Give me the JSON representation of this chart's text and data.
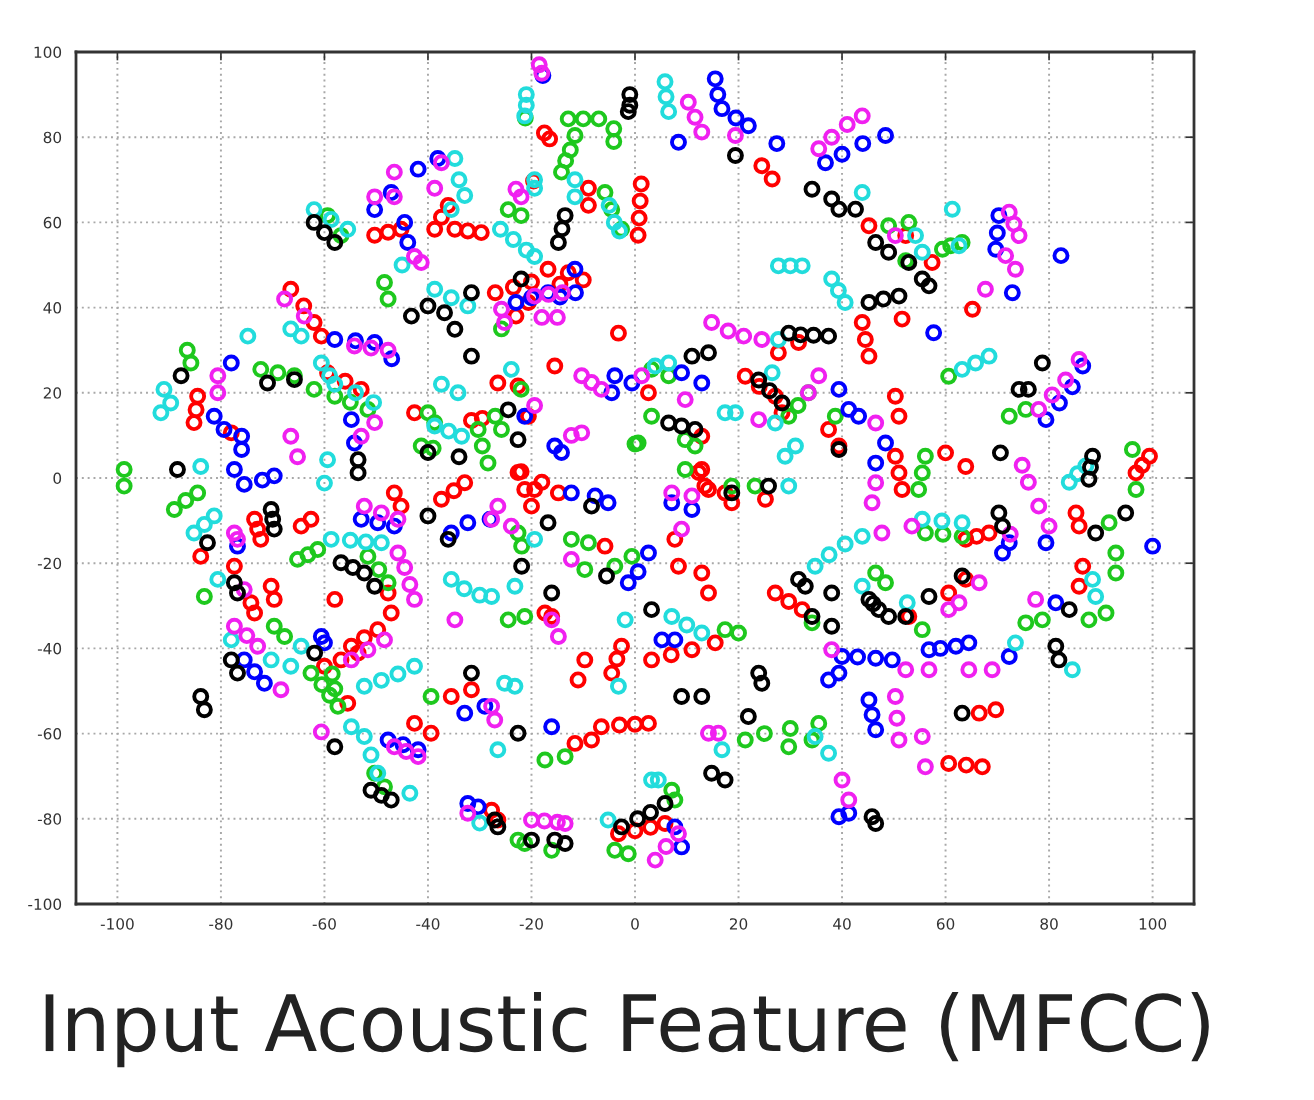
{
  "chart_data": {
    "type": "scatter",
    "title": "Input Acoustic Feature (MFCC)",
    "marker": "circle",
    "grid": true,
    "xlim": [
      -108,
      108
    ],
    "ylim": [
      -100,
      100
    ],
    "xticks": [
      -100,
      -80,
      -60,
      -40,
      -20,
      0,
      20,
      40,
      60,
      80,
      100
    ],
    "yticks": [
      -100,
      -80,
      -60,
      -40,
      -20,
      0,
      20,
      40,
      60,
      80,
      100
    ],
    "series": [
      {
        "color": "#ff0000",
        "x": [
          1.2,
          1,
          0.8,
          0.6,
          -17.5,
          -16.5,
          -9,
          -9,
          -19.6,
          -16.8,
          -12.9,
          -27,
          -23.5,
          -20,
          -23,
          -20.6,
          -14.5,
          -10,
          -50.3,
          -47.7,
          -45.2,
          -38.7,
          -37.4,
          -36.1,
          -34.8,
          -32.3,
          -29.7,
          -66.5,
          -64,
          -62,
          -60.6,
          -59.4,
          -56,
          -52.9,
          -84.5,
          -84.8,
          -85.2,
          -78,
          -42.6,
          -31.6,
          -29.5,
          -26.5,
          -22.6,
          -20.6,
          -15.5,
          -22,
          -18,
          -3.2,
          24.5,
          26.5,
          45.2,
          52.3,
          57.4,
          65.2,
          51.6,
          43.9,
          44.5,
          45.2,
          27.7,
          31.6,
          2.6,
          21.3,
          24,
          27.1,
          28.4,
          12.9,
          37.4,
          39.4,
          50.3,
          51,
          50.3,
          51,
          51.6,
          60,
          63.9,
          12.9,
          14.2,
          96.8,
          98,
          99.4,
          -83.9,
          -73.5,
          -72.9,
          -72.3,
          -77.4,
          -74.2,
          -73.5,
          -70.3,
          -69.7,
          -64.5,
          -62.6,
          -46.5,
          -45.2,
          -47.7,
          -47.1,
          -58,
          -60,
          -56.8,
          -53.5,
          -54.8,
          -52.3,
          -49.7,
          -55.5,
          -37.4,
          -35,
          -32.9,
          -22.6,
          -21.3,
          -20,
          -19.4,
          -14.8,
          -5.8,
          -17.4,
          -16.1,
          -35.5,
          -31.6,
          -42.6,
          -39.4,
          -11.6,
          -8.4,
          -6.5,
          -3,
          0,
          2.6,
          -11,
          -9.7,
          -4.5,
          -3.5,
          -2.6,
          -27.7,
          -26.5,
          -3.2,
          0,
          3,
          5.8,
          12.3,
          13.5,
          7.7,
          17.4,
          18.7,
          25.2,
          8.4,
          12.9,
          14.2,
          3.2,
          7,
          11,
          15.5,
          60.6,
          64,
          67.1,
          66.5,
          69.7,
          27.1,
          29.7,
          32.3,
          52.9,
          60.6,
          63.9,
          63.9,
          66,
          68.4,
          86.5,
          85.8,
          85.2,
          85.8
        ],
        "values": [
          69,
          65,
          61,
          57,
          81,
          79.6,
          68,
          64,
          69.7,
          49,
          48.2,
          43.5,
          44.8,
          46,
          38,
          41.2,
          45.5,
          46.5,
          57,
          57.7,
          58.4,
          58.4,
          61.2,
          64,
          58.4,
          58,
          57.6,
          44.3,
          40.4,
          36.5,
          33.3,
          24.7,
          22.7,
          20.8,
          19.2,
          16,
          13,
          10.6,
          15.3,
          13.5,
          14,
          22.3,
          21.6,
          14.5,
          26.3,
          1.5,
          -1,
          34,
          73.3,
          70.2,
          59.2,
          56.9,
          50.6,
          39.6,
          37.3,
          36.5,
          32.5,
          28.6,
          29.4,
          31.8,
          20,
          23.9,
          21.5,
          19.2,
          15.3,
          9.8,
          11.4,
          7.5,
          19.2,
          14.5,
          5.1,
          1.2,
          -2.7,
          5.9,
          2.7,
          2,
          -2.7,
          1.2,
          3,
          5.1,
          -18.4,
          -9.7,
          -12,
          -14.4,
          -20.7,
          -29.3,
          -31.7,
          -25.4,
          -28.5,
          -11.3,
          -9.7,
          -3.5,
          -6.6,
          -27,
          -31.7,
          -28.5,
          -44.2,
          -42.7,
          -41.1,
          -39.5,
          -37.5,
          -35.6,
          -52.9,
          -5,
          -3,
          -1.1,
          1.3,
          -2.7,
          -6.6,
          -2.7,
          -3.5,
          -16,
          -31.7,
          -32.5,
          -51.3,
          -49.7,
          -57.6,
          -59.9,
          -62.3,
          -61.5,
          -58.4,
          -58,
          -57.8,
          -57.6,
          -47.4,
          -42.7,
          -45.8,
          -42.5,
          -39.5,
          -78,
          -80.3,
          -83.5,
          -82.8,
          -82,
          -81.1,
          1.3,
          -1.9,
          -14.4,
          -3.5,
          -5.8,
          -5,
          -20.7,
          -22.3,
          -27,
          -42.7,
          -41.5,
          -40.3,
          -38.7,
          -67,
          -67.4,
          -67.8,
          -55.2,
          -54.4,
          -27,
          -29,
          -30.9,
          -32.5,
          -27,
          -23.8,
          -14.4,
          -13.7,
          -12.9,
          -20.7,
          -25.4,
          -8.2,
          -11.3
        ]
      },
      {
        "color": "#1ec81e",
        "x": [
          -21.2,
          -12.9,
          -10,
          -7,
          -11.6,
          -12.5,
          -13.4,
          -14.2,
          -4.1,
          -4.1,
          -5.8,
          -4.5,
          -2.6,
          -24.5,
          -22,
          -25.8,
          -48.4,
          -47.7,
          -59.4,
          -56.8,
          -62,
          -58,
          -55,
          -51.6,
          -72.3,
          -69,
          -65.8,
          -86.5,
          -85.8,
          -40,
          -38.7,
          -41.3,
          -39,
          -30.3,
          -29.5,
          -28.4,
          -27,
          -25.8,
          -22,
          0,
          -98.7,
          -98.7,
          49,
          52.9,
          52.3,
          59.4,
          61,
          63.2,
          60.6,
          72.3,
          75.5,
          96.1,
          3.2,
          6.5,
          33.5,
          31.5,
          29.7,
          3.2,
          9.7,
          11.6,
          0.6,
          38.7,
          56.1,
          55.5,
          54.8,
          -89,
          -86.8,
          -84.5,
          -83.2,
          -65.2,
          -63.2,
          -61.3,
          -51.6,
          -49.5,
          -47.7,
          -69.7,
          -67.7,
          -62.6,
          -60.5,
          -59,
          -57.4,
          -58.5,
          -58,
          -50.3,
          -48.4,
          -22.6,
          -21.9,
          -12.3,
          -9,
          -9.7,
          -24.5,
          -21.3,
          -39.4,
          -17.4,
          -13.5,
          -22.6,
          -21.3,
          -16.1,
          -3.9,
          -1.3,
          9.7,
          18.7,
          23.2,
          -3.9,
          -0.6,
          17.4,
          20,
          21.3,
          25,
          30,
          35.5,
          29.7,
          34.2,
          7.1,
          7.7,
          75.5,
          78.7,
          87.7,
          91,
          92.9,
          92.9,
          91.6,
          96.8,
          56.1,
          59.5,
          63.2,
          46.5,
          48.4,
          34.2,
          55.5
        ],
        "values": [
          84.5,
          84.3,
          84.3,
          84.3,
          80.4,
          77,
          74.5,
          71.8,
          82,
          79,
          67,
          63,
          58.4,
          63,
          61.6,
          35,
          45.9,
          42,
          61.6,
          56.9,
          20.8,
          19.2,
          17.8,
          16.1,
          25.5,
          24.7,
          24,
          30,
          27,
          15.3,
          13,
          7.5,
          7,
          11.4,
          7.5,
          3.5,
          14.5,
          11.4,
          20.8,
          8,
          2,
          -1.9,
          59.2,
          60,
          51,
          53.7,
          54.5,
          55.3,
          23.9,
          14.5,
          16.1,
          6.7,
          25.5,
          24,
          20,
          17,
          14.5,
          14.5,
          9,
          7.5,
          8.2,
          14.5,
          5.1,
          1.2,
          -2.7,
          -7.4,
          -5.3,
          -3.5,
          -27.8,
          -19.1,
          -18,
          -16.8,
          -18.4,
          -21.5,
          -24.6,
          -34.8,
          -37.2,
          -45.8,
          -48.5,
          -51,
          -53.6,
          -46,
          -49.5,
          -69.3,
          -72.5,
          -12.9,
          -16,
          -14.4,
          -15.2,
          -21.5,
          -33.3,
          -32.5,
          -51.3,
          -66.2,
          -65.4,
          -85,
          -85.8,
          -87.4,
          -87.4,
          -88.2,
          2,
          -1.9,
          -1.9,
          -20.7,
          -18.4,
          -35.6,
          -36.4,
          -61.5,
          -60,
          -58.8,
          -57.6,
          -63.1,
          -61.5,
          -73.3,
          -75.6,
          -34,
          -33.3,
          -33.3,
          -31.7,
          -17.6,
          -22.3,
          -10.5,
          -2.7,
          -12.9,
          -13.2,
          -13.7,
          -22.3,
          -24.6,
          -34,
          -35.6
        ]
      },
      {
        "color": "#0000ff",
        "x": [
          -17.8,
          -23,
          -20,
          -16.8,
          -14.5,
          -11.5,
          -11.6,
          -44.5,
          -43.9,
          -50.3,
          -47.1,
          -41.9,
          -38.1,
          -58,
          -54,
          -50.3,
          -47,
          -78,
          -81.3,
          -79.4,
          -76,
          -76,
          -54.8,
          -54.2,
          -75.5,
          -72,
          -69.7,
          -77.4,
          -21.3,
          -3.9,
          -0.6,
          -4.5,
          -15.5,
          -14.2,
          8.4,
          15.5,
          16,
          16.8,
          19.5,
          21.9,
          27.4,
          36.8,
          40,
          44,
          48.4,
          70.3,
          70,
          69.7,
          72.9,
          82.3,
          57.7,
          79.4,
          82,
          84.5,
          86.5,
          9,
          12.9,
          39.4,
          41.3,
          43.2,
          46.5,
          48.4,
          -76.8,
          -52.9,
          -49.7,
          -46.5,
          -75.5,
          -73.5,
          -71.6,
          -60.6,
          -60,
          -47.7,
          -44.8,
          -41.9,
          -35.5,
          -32.3,
          -28,
          -12.3,
          -7.7,
          -5.2,
          -1.3,
          0.6,
          2.6,
          -32.9,
          -29,
          -16.1,
          -32.3,
          -30.3,
          7.1,
          11,
          5.2,
          7.7,
          7.7,
          9,
          39.4,
          41.3,
          45.2,
          45.8,
          46.5,
          37.4,
          39.4,
          40,
          43,
          46.5,
          49.7,
          56.8,
          59,
          62,
          64.5,
          72.3,
          81.3,
          100,
          79.4,
          71,
          72.3
        ],
        "values": [
          94.5,
          41.2,
          42.3,
          43.5,
          42.5,
          43.5,
          49,
          60,
          55.3,
          63,
          67,
          72.5,
          75,
          32.5,
          32.2,
          31.8,
          28,
          27,
          14.5,
          11.4,
          9.8,
          6.7,
          13.7,
          8.2,
          -1.5,
          -0.5,
          0.5,
          2,
          14.5,
          24,
          22.3,
          20,
          7.5,
          6,
          78.8,
          93.7,
          90,
          86.7,
          84.5,
          82.7,
          78.5,
          74,
          76,
          78.5,
          80.4,
          61.6,
          57.5,
          53.7,
          43.5,
          52.2,
          34.1,
          13.7,
          17.6,
          21.4,
          26.3,
          24.7,
          22.3,
          20.8,
          16.1,
          14.5,
          3.5,
          8.2,
          -16,
          -9.7,
          -10.5,
          -11.3,
          -42.7,
          -45.5,
          -48.2,
          -37.2,
          -38.7,
          -61.5,
          -62.6,
          -63.8,
          -12.9,
          -10.5,
          -9.7,
          -3.5,
          -4.2,
          -5.8,
          -24.6,
          -22,
          -17.6,
          -55.2,
          -53.6,
          -58.4,
          -76.4,
          -77.2,
          -5.8,
          -7.4,
          -38,
          -38,
          -81.9,
          -86.6,
          -79.5,
          -78.7,
          -52.1,
          -55.6,
          -59.1,
          -47.4,
          -45.8,
          -41.9,
          -42,
          -42.3,
          -42.7,
          -40.3,
          -40,
          -39.5,
          -38.7,
          -41.9,
          -29.3,
          -16,
          -15.2,
          -17.6,
          -15.2
        ]
      },
      {
        "color": "#22dcdc",
        "x": [
          -21,
          -21,
          -21.3,
          -19.4,
          -19.4,
          -11.6,
          -11.6,
          -5,
          -4,
          -3,
          -26,
          -23.5,
          -21,
          -19.4,
          -38.7,
          -35.5,
          -32.3,
          -45,
          -34.8,
          -34,
          -32.9,
          -35.5,
          -62,
          -58.7,
          -55.5,
          -66.5,
          -64.5,
          -74.8,
          -60.6,
          -59,
          -58,
          -54,
          -50.5,
          -91,
          -89.7,
          -91.6,
          -59.4,
          -60,
          -83.9,
          -38.7,
          -36,
          -33.5,
          -37.4,
          -34.2,
          -23.9,
          5.8,
          6,
          6.5,
          43.9,
          54.2,
          55.5,
          62.6,
          61.3,
          27.7,
          30,
          32.3,
          38,
          39.3,
          40.6,
          63.2,
          65.8,
          68.4,
          83.9,
          85.5,
          87.1,
          27.7,
          3.9,
          6.5,
          26.5,
          27.1,
          17.4,
          19.4,
          31,
          29,
          -85.2,
          -83.2,
          -81.3,
          -80.6,
          -58.7,
          -55,
          -52,
          -49,
          -78,
          -70.3,
          -66.5,
          -64.5,
          -52.3,
          -49,
          -45.8,
          -42.6,
          -54.8,
          -52.3,
          -51,
          -49.7,
          -43.5,
          -35.5,
          -33,
          -30,
          -27.7,
          -19.4,
          -23.2,
          -25.2,
          -23.2,
          -26.5,
          -3.2,
          -1.9,
          -30,
          -5.2,
          29.7,
          7.1,
          10,
          12.9,
          34.8,
          37.4,
          16.8,
          3.2,
          4.5,
          73.5,
          84.5,
          88.4,
          89,
          55.5,
          59.3,
          63.2,
          34.8,
          37.5,
          40.6,
          43.9,
          43.9,
          52.6
        ],
        "values": [
          90,
          87.5,
          85,
          70,
          68,
          70,
          66,
          64,
          60,
          58,
          58.4,
          56,
          53.5,
          52,
          44.3,
          42.3,
          40.4,
          50,
          75,
          70,
          66.3,
          63,
          63,
          60.7,
          58.4,
          35,
          33.3,
          33.3,
          27,
          24,
          22,
          20,
          17.7,
          20.8,
          17.6,
          15.3,
          4.3,
          -1.2,
          2.7,
          12.2,
          11,
          9.8,
          22,
          20,
          25.5,
          93,
          89.5,
          86,
          67,
          56.9,
          53,
          54.5,
          63.1,
          49.8,
          49.8,
          49.8,
          46.7,
          44,
          41.2,
          25.5,
          27,
          28.6,
          -1,
          1,
          2.8,
          32.5,
          26.3,
          27,
          24.7,
          12.9,
          15.3,
          15.3,
          7.5,
          5.1,
          -12.9,
          -10.9,
          -8.9,
          -23.8,
          -14.4,
          -14.6,
          -15,
          -15.2,
          -38,
          -42.7,
          -44.2,
          -39.5,
          -48.9,
          -47.5,
          -46,
          -44.2,
          -58.4,
          -60.7,
          -65,
          -69.3,
          -74,
          -23.8,
          -26,
          -27.5,
          -27.8,
          -14.4,
          -25.4,
          -48.2,
          -48.9,
          -63.8,
          -48.9,
          -33.3,
          -81,
          -80.3,
          -1.9,
          -32.5,
          -34.5,
          -36.4,
          -60.7,
          -64.6,
          -63.8,
          -70.9,
          -70.9,
          -38.7,
          -45,
          -23.8,
          -27.8,
          -9.7,
          -10.1,
          -10.5,
          -20.7,
          -18,
          -15.5,
          -13.7,
          -25.4,
          -29.3
        ]
      },
      {
        "color": "#f020f0",
        "x": [
          -18.5,
          -18,
          -23,
          -22,
          -25.8,
          -25.2,
          -19.4,
          -16.7,
          -14,
          -18,
          -15,
          -42.6,
          -41.3,
          -50.3,
          -46.5,
          -46.5,
          -37.4,
          -38.7,
          -67.7,
          -63.9,
          -54.2,
          -51,
          -47.7,
          -80.6,
          -80.6,
          -66.5,
          -65.2,
          -52.9,
          -50.3,
          -19.4,
          -10.3,
          -8.4,
          -6.5,
          -12.3,
          -10.3,
          10.3,
          11.6,
          12.9,
          19.4,
          35.5,
          38,
          41,
          43.9,
          50.3,
          72.3,
          73.2,
          74.2,
          71.6,
          73.5,
          67.7,
          78,
          80.6,
          83.2,
          85.8,
          74.8,
          76,
          78,
          14.8,
          18,
          21,
          24.5,
          1.3,
          9.7,
          35.5,
          33.5,
          23.9,
          46.5,
          -52.3,
          -49,
          -45.8,
          -77.4,
          -76.8,
          -75.5,
          -45.8,
          -44.5,
          -43.5,
          -42.6,
          -77.4,
          -75,
          -72.9,
          -54.8,
          -51.6,
          -48.4,
          -68.4,
          -60.6,
          -46.5,
          -44.2,
          -41.9,
          -34.8,
          -27.7,
          -26.5,
          -23.9,
          -12.3,
          -16.1,
          -14.8,
          -27.7,
          -27.1,
          -32.3,
          -20,
          -17.5,
          -15,
          -13.5,
          7.1,
          11,
          9,
          14.2,
          16.1,
          3.9,
          6,
          8.4,
          40,
          41.3,
          55.5,
          56.1,
          50.3,
          50.6,
          51,
          38,
          52.3,
          56.8,
          64.5,
          69,
          77.4,
          80,
          72.5,
          45.8,
          47.7,
          53.5,
          46.5,
          60.6,
          62.6,
          66.5
        ],
        "values": [
          97,
          95,
          67.8,
          66,
          39.6,
          36.5,
          42.7,
          43.1,
          43.5,
          37.7,
          37.7,
          52,
          50.6,
          66,
          71.8,
          66,
          74,
          68,
          42,
          38,
          31,
          30.5,
          30,
          24,
          20,
          9.8,
          5,
          9.8,
          13,
          17,
          24,
          22.4,
          20.8,
          10,
          10.6,
          88.2,
          84.7,
          81.2,
          80.4,
          77.3,
          80,
          83,
          85,
          56.9,
          62.4,
          59.6,
          56.9,
          52.2,
          49,
          44.3,
          16.1,
          19.5,
          23,
          27.8,
          3,
          -1,
          -6.6,
          36.5,
          34.5,
          33.3,
          32.5,
          24,
          18.4,
          24,
          20,
          13.7,
          12.9,
          -6.6,
          -8.2,
          -9.7,
          -12.9,
          -14.4,
          -26.2,
          -17.6,
          -21,
          -25,
          -28.5,
          -34.8,
          -37,
          -39.5,
          -42.7,
          -40.3,
          -38,
          -49.7,
          -59.6,
          -63.1,
          -64.2,
          -65.4,
          -33.3,
          -9.7,
          -6.6,
          -11.3,
          -19.1,
          -33.3,
          -37.2,
          -53.6,
          -56.8,
          -78.7,
          -80.3,
          -80.5,
          -80.8,
          -81.1,
          -3.5,
          -4.2,
          -12,
          -59.9,
          -59.9,
          -89.7,
          -86.5,
          -83.5,
          -70.9,
          -75.6,
          -60.7,
          -67.8,
          -51.3,
          -56.4,
          -61.5,
          -40.3,
          -45,
          -45,
          -45,
          -45,
          -28.5,
          -11.3,
          -13.2,
          -5.8,
          -12.9,
          -11.3,
          -1.1,
          -30.9,
          -29.3,
          -24.6
        ]
      },
      {
        "color": "#000000",
        "x": [
          -1,
          -1,
          -1.3,
          -13.5,
          -14.1,
          -14.8,
          -22,
          -43.2,
          -40,
          -36.8,
          -34.8,
          -31.6,
          -31.6,
          -62,
          -60,
          -58,
          -71,
          -65.8,
          -87.7,
          -53.5,
          -53.5,
          -88.4,
          -40,
          -34,
          -22.6,
          -24.5,
          19.4,
          34.2,
          38,
          39.4,
          42.6,
          46.5,
          49,
          52.9,
          55.5,
          56.8,
          45.2,
          48,
          51,
          29.7,
          32,
          34.5,
          37.4,
          11,
          14.2,
          23.9,
          26,
          28.4,
          78.7,
          74.2,
          76,
          70.6,
          88.4,
          88,
          87.7,
          6.5,
          9,
          11.6,
          39.4,
          -82.6,
          -70.3,
          -70,
          -69.7,
          -77.4,
          -76.8,
          -56.8,
          -54.5,
          -52.3,
          -50.3,
          -78,
          -76.8,
          -83.9,
          -83.2,
          -61.9,
          -58,
          -51,
          -49,
          -47.1,
          -40,
          -36.1,
          -16.8,
          -8.4,
          -21.9,
          -5.5,
          -16.1,
          -31.6,
          -22.6,
          -27.1,
          -26.5,
          -20,
          -15.5,
          -13.5,
          -2.6,
          0.5,
          3,
          5.8,
          18.7,
          25.8,
          3.2,
          9,
          12.9,
          23.9,
          24.5,
          21.9,
          14.8,
          17.4,
          45.8,
          46.5,
          63.2,
          81.3,
          81.9,
          83.9,
          89,
          94.8,
          70.3,
          71,
          31.6,
          32.9,
          34.2,
          38,
          38,
          45.2,
          46,
          47.1,
          49,
          52.3,
          56.8,
          63.2
        ],
        "values": [
          90,
          87.5,
          86,
          61.6,
          58.5,
          55.3,
          46.7,
          38,
          40.4,
          38.8,
          34.9,
          43.5,
          28.6,
          60,
          57.6,
          55.3,
          22.3,
          23.1,
          24,
          4.3,
          1.2,
          2,
          6,
          5,
          9,
          16,
          75.7,
          67.8,
          65.5,
          63.1,
          63.1,
          55.3,
          53,
          50.6,
          46.7,
          45.1,
          41.2,
          42,
          42.7,
          34,
          33.6,
          33.5,
          33.3,
          28.6,
          29.4,
          23,
          20.5,
          17.6,
          27,
          20.8,
          20.8,
          5.9,
          5.1,
          2.5,
          -0.3,
          12.9,
          12.2,
          11.4,
          6.7,
          -15.2,
          -7.4,
          -9.7,
          -12,
          -24.6,
          -27,
          -19.9,
          -21,
          -22.3,
          -25.4,
          -42.7,
          -45.8,
          -51.3,
          -54.4,
          -41.1,
          -63.1,
          -73.3,
          -74.5,
          -75.6,
          -8.9,
          -14.4,
          -10.5,
          -6.6,
          -20.7,
          -23,
          -27,
          -45.8,
          -59.9,
          -80.3,
          -81.9,
          -85,
          -85,
          -85.8,
          -81.9,
          -80,
          -78.5,
          -76.4,
          -3.5,
          -1.9,
          -30.9,
          -51.3,
          -51.3,
          -45.8,
          -48.2,
          -56,
          -69.3,
          -70.9,
          -79.5,
          -81.1,
          -55.2,
          -39.5,
          -42.7,
          -30.9,
          -12.9,
          -8.2,
          -8.2,
          -11.3,
          -23.8,
          -25.4,
          -32.5,
          -27,
          -34.8,
          -28.5,
          -29.5,
          -30.9,
          -32.5,
          -32.5,
          -27.8,
          -23
        ]
      }
    ]
  }
}
